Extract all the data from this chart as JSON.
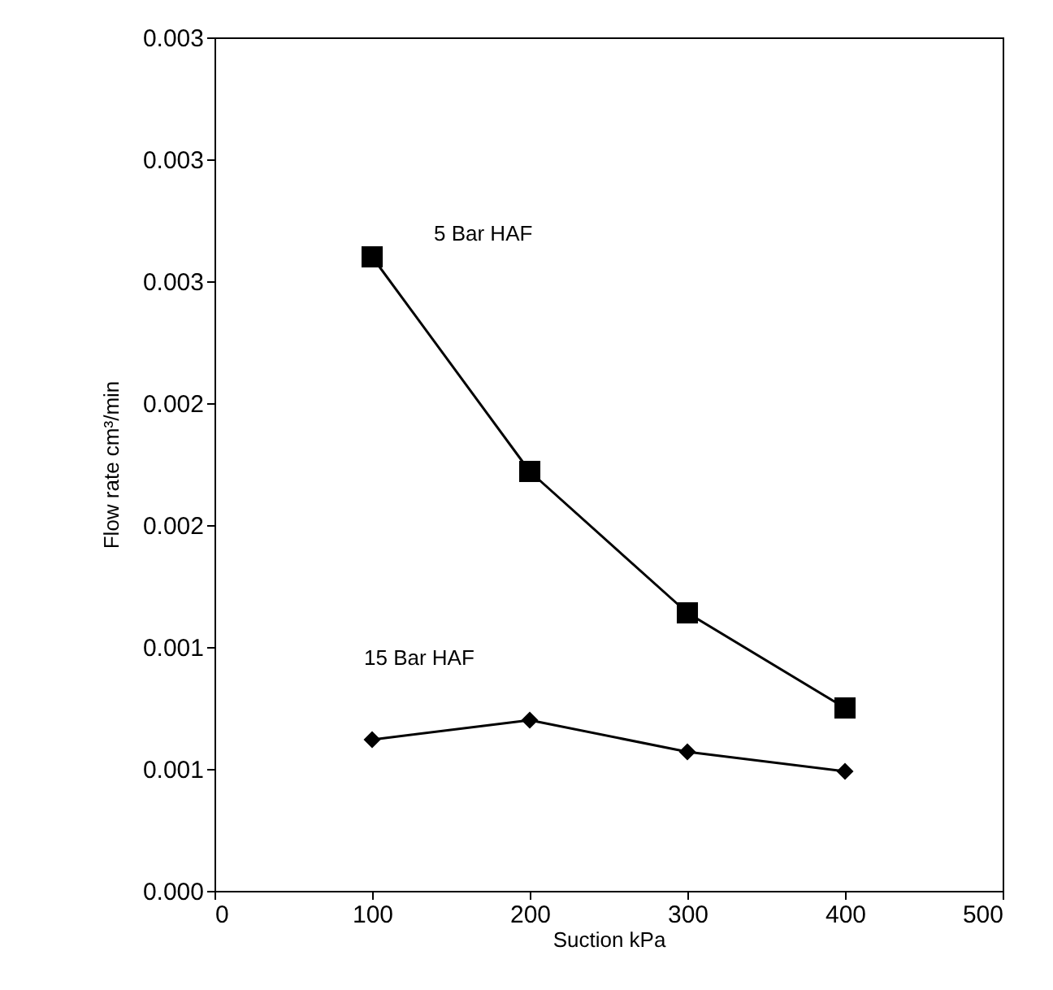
{
  "chart_data": {
    "type": "line",
    "xlabel": "Suction kPa",
    "ylabel": "Flow rate cm³/min",
    "xlim": [
      0,
      500
    ],
    "xticks": [
      0,
      100,
      200,
      300,
      400,
      500
    ],
    "ylim": [
      0,
      0.0035
    ],
    "yticks": [
      {
        "value": 0,
        "label": "0.000"
      },
      {
        "value": 0.0005,
        "label": "0.001"
      },
      {
        "value": 0.001,
        "label": "0.001"
      },
      {
        "value": 0.0015,
        "label": "0.002"
      },
      {
        "value": 0.002,
        "label": "0.002"
      },
      {
        "value": 0.0025,
        "label": "0.003"
      },
      {
        "value": 0.003,
        "label": "0.003"
      },
      {
        "value": 0.0035,
        "label": "0.003"
      }
    ],
    "x": [
      100,
      200,
      300,
      400
    ],
    "series": [
      {
        "name": "5 Bar HAF",
        "color": "#000000",
        "marker": "square",
        "values": [
          0.0026,
          0.00172,
          0.00114,
          0.00075
        ]
      },
      {
        "name": "15 Bar HAF",
        "color": "#000000",
        "marker": "diamond",
        "values": [
          0.00062,
          0.0007,
          0.00057,
          0.00049
        ]
      }
    ],
    "grid": false,
    "line_style": "solid"
  }
}
